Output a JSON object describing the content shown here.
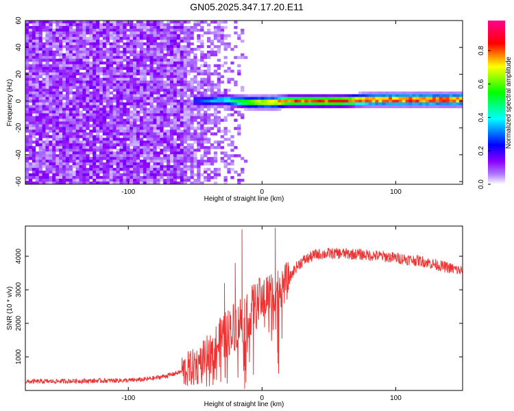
{
  "title": "GN05.2025.347.17.20.E11",
  "chart_data": [
    {
      "type": "heatmap",
      "xlabel": "Height of straight line (km)",
      "ylabel": "Frequency (Hz)",
      "xlim": [
        -177,
        150
      ],
      "ylim": [
        -62,
        60
      ],
      "xticks": [
        -100,
        0,
        100
      ],
      "xtick_labels": [
        "-100",
        "0",
        "100"
      ],
      "yticks": [
        60,
        40,
        20,
        0,
        -20,
        -40,
        -60
      ],
      "ytick_labels": [
        "60",
        "40",
        "20",
        "0",
        "-20",
        "-40",
        "-60"
      ],
      "colorbar": {
        "label": "Normalized spectral amplitude",
        "range": [
          0,
          0.98
        ],
        "ticks": [
          0.0,
          0.2,
          0.4,
          0.6,
          0.8
        ],
        "tick_labels": [
          "0.0",
          "0.2",
          "0.4",
          "0.6",
          "0.8"
        ],
        "colors": [
          "#ffffff",
          "#8a00ff",
          "#0000ff",
          "#00ffff",
          "#00ff00",
          "#ffff00",
          "#ff0000",
          "#ff00a0"
        ]
      },
      "noise_region": {
        "x_start": -177,
        "x_end": -10,
        "amplitude": 0.08
      },
      "ridge": [
        {
          "x": -50,
          "freq": 0,
          "amp": 0.3
        },
        {
          "x": -40,
          "freq": 0,
          "amp": 0.35
        },
        {
          "x": -30,
          "freq": 1,
          "amp": 0.45
        },
        {
          "x": -20,
          "freq": 0,
          "amp": 0.55
        },
        {
          "x": -10,
          "freq": -1,
          "amp": 0.7
        },
        {
          "x": 0,
          "freq": -1,
          "amp": 0.8
        },
        {
          "x": 10,
          "freq": -1,
          "amp": 0.85
        },
        {
          "x": 20,
          "freq": 0,
          "amp": 0.88
        },
        {
          "x": 40,
          "freq": 0,
          "amp": 0.9
        },
        {
          "x": 60,
          "freq": 0,
          "amp": 0.92
        },
        {
          "x": 80,
          "freq": 1,
          "amp": 0.93
        },
        {
          "x": 100,
          "freq": 1,
          "amp": 0.95
        },
        {
          "x": 120,
          "freq": 1,
          "amp": 0.95
        },
        {
          "x": 150,
          "freq": 1,
          "amp": 0.94
        }
      ]
    },
    {
      "type": "line",
      "xlabel": "Height of straight line (km)",
      "ylabel": "SNR (10 * v/v)",
      "xlim": [
        -177,
        150
      ],
      "ylim": [
        0,
        4900
      ],
      "xticks": [
        -100,
        0,
        100
      ],
      "xtick_labels": [
        "-100",
        "0",
        "100"
      ],
      "yticks": [
        1000,
        2000,
        3000,
        4000
      ],
      "ytick_labels": [
        "1000",
        "2000",
        "3000",
        "4000"
      ],
      "series": [
        {
          "color": "#ee3333",
          "x": [
            -177,
            -160,
            -140,
            -120,
            -100,
            -90,
            -80,
            -70,
            -60,
            -50,
            -45,
            -40,
            -35,
            -30,
            -25,
            -20,
            -15,
            -10,
            -5,
            0,
            5,
            10,
            15,
            20,
            25,
            30,
            35,
            40,
            50,
            60,
            70,
            80,
            90,
            100,
            110,
            120,
            130,
            140,
            150
          ],
          "y": [
            260,
            270,
            280,
            290,
            300,
            320,
            370,
            450,
            560,
            700,
            850,
            1050,
            1300,
            1550,
            1750,
            1950,
            2150,
            2300,
            2500,
            2750,
            2900,
            3000,
            3100,
            3300,
            3650,
            3850,
            3950,
            4050,
            4080,
            4080,
            4060,
            4030,
            4000,
            3950,
            3900,
            3850,
            3750,
            3650,
            3550
          ],
          "spikes": [
            {
              "x": -15,
              "y": 4800
            },
            {
              "x": -20,
              "y": 3800
            },
            {
              "x": -28,
              "y": 3200
            },
            {
              "x": -13,
              "y": 50
            },
            {
              "x": 10,
              "y": 4850
            },
            {
              "x": 12,
              "y": 800
            }
          ]
        }
      ]
    }
  ]
}
